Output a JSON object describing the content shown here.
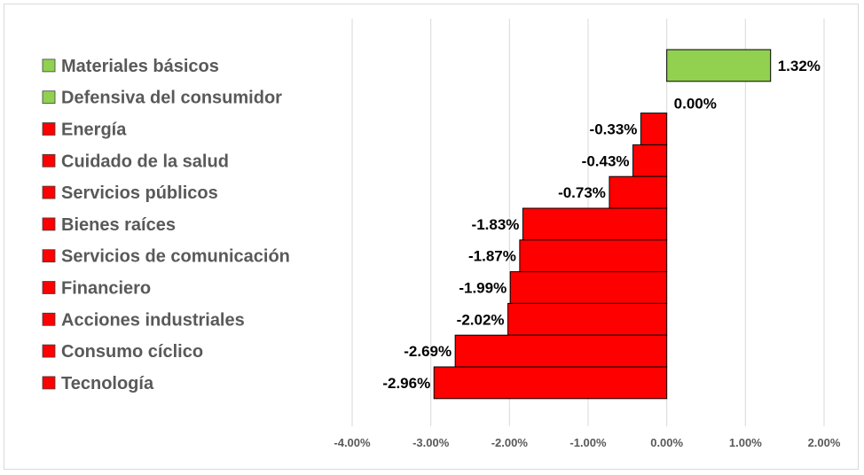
{
  "chart_data": {
    "type": "bar",
    "orientation": "horizontal",
    "categories": [
      "Materiales básicos",
      "Defensiva del consumidor",
      "Energía",
      "Cuidado de la salud",
      "Servicios públicos",
      "Bienes raíces",
      "Servicios de comunicación",
      "Financiero",
      "Acciones industriales",
      "Consumo cíclico",
      "Tecnología"
    ],
    "values": [
      1.32,
      0.0,
      -0.33,
      -0.43,
      -0.73,
      -1.83,
      -1.87,
      -1.99,
      -2.02,
      -2.69,
      -2.96
    ],
    "value_labels": [
      "1.32%",
      "0.00%",
      "-0.33%",
      "-0.43%",
      "-0.73%",
      "-1.83%",
      "-1.87%",
      "-1.99%",
      "-2.02%",
      "-2.69%",
      "-2.96%"
    ],
    "xlim": [
      -4.0,
      2.0
    ],
    "x_ticks": [
      -4,
      -3,
      -2,
      -1,
      0,
      1,
      2
    ],
    "x_tick_labels": [
      "-4.00%",
      "-3.00%",
      "-2.00%",
      "-1.00%",
      "0.00%",
      "1.00%",
      "2.00%"
    ],
    "grid": "vertical",
    "legend": "left",
    "colors": {
      "positive": "#92d050",
      "negative": "#ff0000",
      "zero": "#92d050",
      "border": "#000000"
    }
  }
}
